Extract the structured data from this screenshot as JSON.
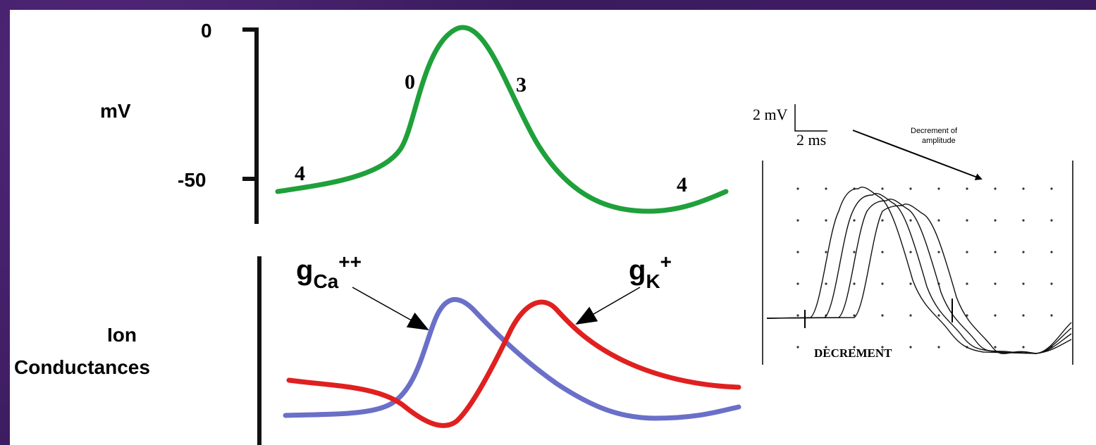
{
  "action_potential": {
    "ylabel": "mV",
    "ticks": [
      "0",
      "-50"
    ],
    "phase_labels": [
      "4",
      "0",
      "3",
      "4"
    ],
    "line_color": "#1fa03a"
  },
  "conductances": {
    "ylabel_line1": "Ion",
    "ylabel_line2": "Conductances",
    "gca": {
      "base": "g",
      "sub": "Ca",
      "sup": "++",
      "color": "#6a6fc8"
    },
    "gk": {
      "base": "g",
      "sub": "K",
      "sup": "+",
      "color": "#e02020"
    }
  },
  "recording": {
    "scale_v": "2 mV",
    "scale_t": "2 ms",
    "annotation_line1": "Decrement of",
    "annotation_line2": "amplitude",
    "caption": "DECREMENT"
  }
}
